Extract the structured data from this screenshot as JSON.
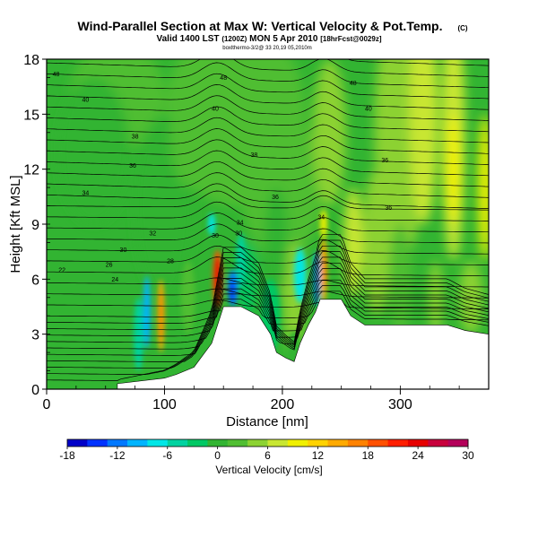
{
  "title": {
    "main": "Wind-Parallel Section at Max W: Vertical Velocity & Pot.Temp.",
    "copyright": "(C)",
    "valid_prefix": "Valid 1400 LST",
    "valid_utc": "(1200Z)",
    "valid_date": "MON 5 Apr 2010",
    "forecast": "[18hrFcst@0029z]",
    "credit": "boxlthermo-3/2@ 33 20,19 05,2010m"
  },
  "chart_data": {
    "type": "contour",
    "title": "Wind-Parallel Section at Max W: Vertical Velocity & Pot.Temp.",
    "xlabel": "Distance [nm]",
    "ylabel": "Height [Kft MSL]",
    "xlim": [
      0,
      375
    ],
    "ylim": [
      0,
      18
    ],
    "xticks": [
      0,
      100,
      200,
      300
    ],
    "yticks": [
      0,
      3,
      6,
      9,
      12,
      15,
      18
    ],
    "colorbar": {
      "label": "Vertical Velocity [cm/s]",
      "ticks": [
        -18,
        -12,
        -6,
        0,
        6,
        12,
        18,
        24,
        30
      ],
      "range": [
        -18,
        30
      ],
      "colors": [
        "#0000c8",
        "#0032ff",
        "#0078ff",
        "#00b4ff",
        "#00e6e6",
        "#00d2a0",
        "#00c864",
        "#32b432",
        "#50be32",
        "#8cd232",
        "#c8e632",
        "#f0f000",
        "#ffd200",
        "#ffaa00",
        "#ff8200",
        "#ff5000",
        "#ff1e00",
        "#e60000",
        "#c8003c",
        "#b4005a"
      ]
    },
    "terrain": [
      [
        0,
        0
      ],
      [
        60,
        0
      ],
      [
        60,
        0.3
      ],
      [
        100,
        0.6
      ],
      [
        110,
        0.8
      ],
      [
        125,
        1.2
      ],
      [
        140,
        2.5
      ],
      [
        150,
        4.5
      ],
      [
        165,
        4.5
      ],
      [
        180,
        4.0
      ],
      [
        190,
        3.0
      ],
      [
        195,
        2.0
      ],
      [
        203,
        1.7
      ],
      [
        210,
        1.5
      ],
      [
        215,
        2.5
      ],
      [
        222,
        3.5
      ],
      [
        228,
        4.2
      ],
      [
        232,
        4.9
      ],
      [
        250,
        4.9
      ],
      [
        258,
        4.0
      ],
      [
        270,
        3.5
      ],
      [
        300,
        3.5
      ],
      [
        340,
        3.5
      ],
      [
        355,
        3.2
      ],
      [
        375,
        3.0
      ],
      [
        375,
        0
      ]
    ],
    "isentrope_labels": [
      {
        "x": 8,
        "y": 17.2,
        "text": "48"
      },
      {
        "x": 150,
        "y": 17.0,
        "text": "48"
      },
      {
        "x": 260,
        "y": 16.7,
        "text": "48"
      },
      {
        "x": 33,
        "y": 15.8,
        "text": "40"
      },
      {
        "x": 143,
        "y": 15.3,
        "text": "40"
      },
      {
        "x": 273,
        "y": 15.3,
        "text": "40"
      },
      {
        "x": 75,
        "y": 13.8,
        "text": "38"
      },
      {
        "x": 176,
        "y": 12.8,
        "text": "38"
      },
      {
        "x": 73,
        "y": 12.2,
        "text": "36"
      },
      {
        "x": 287,
        "y": 12.5,
        "text": "36"
      },
      {
        "x": 33,
        "y": 10.7,
        "text": "34"
      },
      {
        "x": 194,
        "y": 10.5,
        "text": "36"
      },
      {
        "x": 290,
        "y": 9.9,
        "text": "36"
      },
      {
        "x": 164,
        "y": 9.1,
        "text": "34"
      },
      {
        "x": 233,
        "y": 9.4,
        "text": "34"
      },
      {
        "x": 90,
        "y": 8.5,
        "text": "32"
      },
      {
        "x": 143,
        "y": 8.4,
        "text": "30"
      },
      {
        "x": 163,
        "y": 8.5,
        "text": "30"
      },
      {
        "x": 65,
        "y": 7.6,
        "text": "30"
      },
      {
        "x": 105,
        "y": 7.0,
        "text": "28"
      },
      {
        "x": 53,
        "y": 6.8,
        "text": "26"
      },
      {
        "x": 13,
        "y": 6.5,
        "text": "22"
      },
      {
        "x": 58,
        "y": 6.0,
        "text": "24"
      }
    ]
  }
}
